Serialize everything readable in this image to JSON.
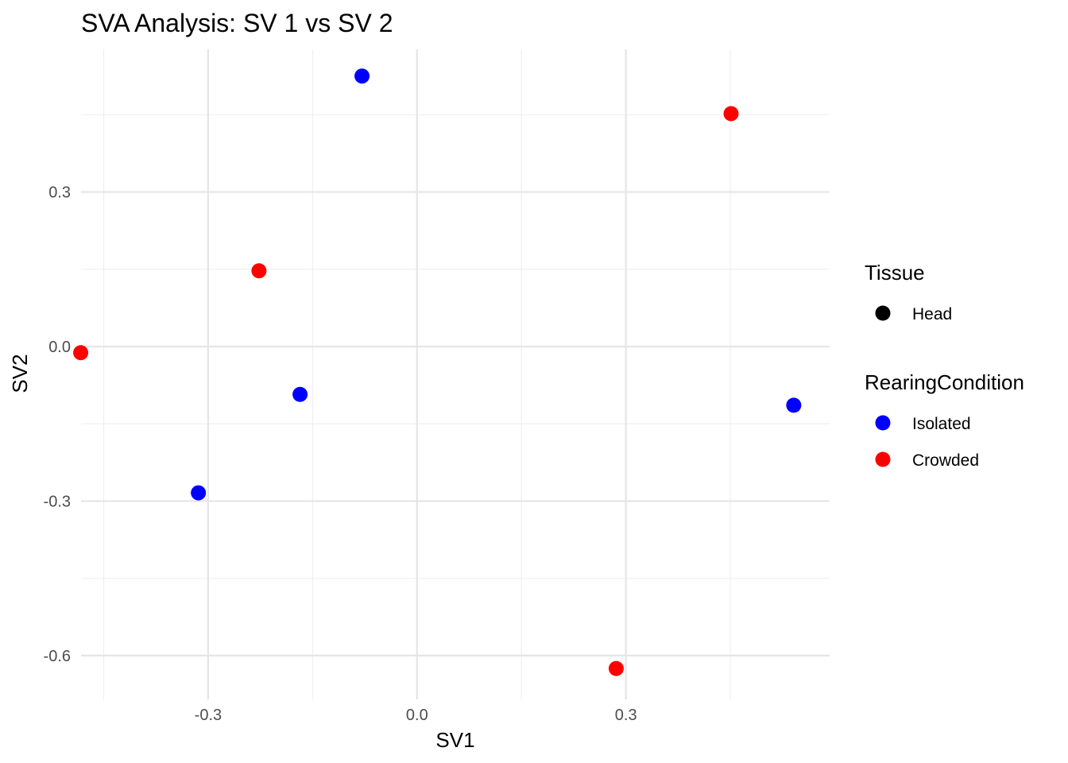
{
  "chart_data": {
    "type": "scatter",
    "title": "SVA Analysis: SV 1  vs SV 2",
    "xlabel": "SV1",
    "ylabel": "SV2",
    "xlim": [
      -0.4825,
      0.5925
    ],
    "ylim": [
      -0.685,
      0.577
    ],
    "x_ticks": [
      -0.3,
      0.0,
      0.3
    ],
    "x_tick_labels": [
      "-0.3",
      "0.0",
      "0.3"
    ],
    "y_ticks": [
      -0.6,
      -0.3,
      0.0,
      0.3
    ],
    "y_tick_labels": [
      "-0.6",
      "-0.3",
      "0.0",
      "0.3"
    ],
    "grid": true,
    "legend_position": "right",
    "legends": [
      {
        "title": "Tissue",
        "entries": [
          {
            "label": "Head",
            "color": "#000000"
          }
        ]
      },
      {
        "title": "RearingCondition",
        "entries": [
          {
            "label": "Isolated",
            "color": "#0000ff"
          },
          {
            "label": "Crowded",
            "color": "#ff0000"
          }
        ]
      }
    ],
    "series": [
      {
        "name": "Isolated",
        "color": "#0000ff",
        "points": [
          {
            "x": -0.079,
            "y": 0.525
          },
          {
            "x": -0.168,
            "y": -0.093
          },
          {
            "x": -0.314,
            "y": -0.284
          },
          {
            "x": 0.541,
            "y": -0.114
          }
        ]
      },
      {
        "name": "Crowded",
        "color": "#ff0000",
        "points": [
          {
            "x": 0.451,
            "y": 0.452
          },
          {
            "x": -0.227,
            "y": 0.147
          },
          {
            "x": -0.483,
            "y": -0.012
          },
          {
            "x": 0.286,
            "y": -0.625
          }
        ]
      }
    ]
  }
}
